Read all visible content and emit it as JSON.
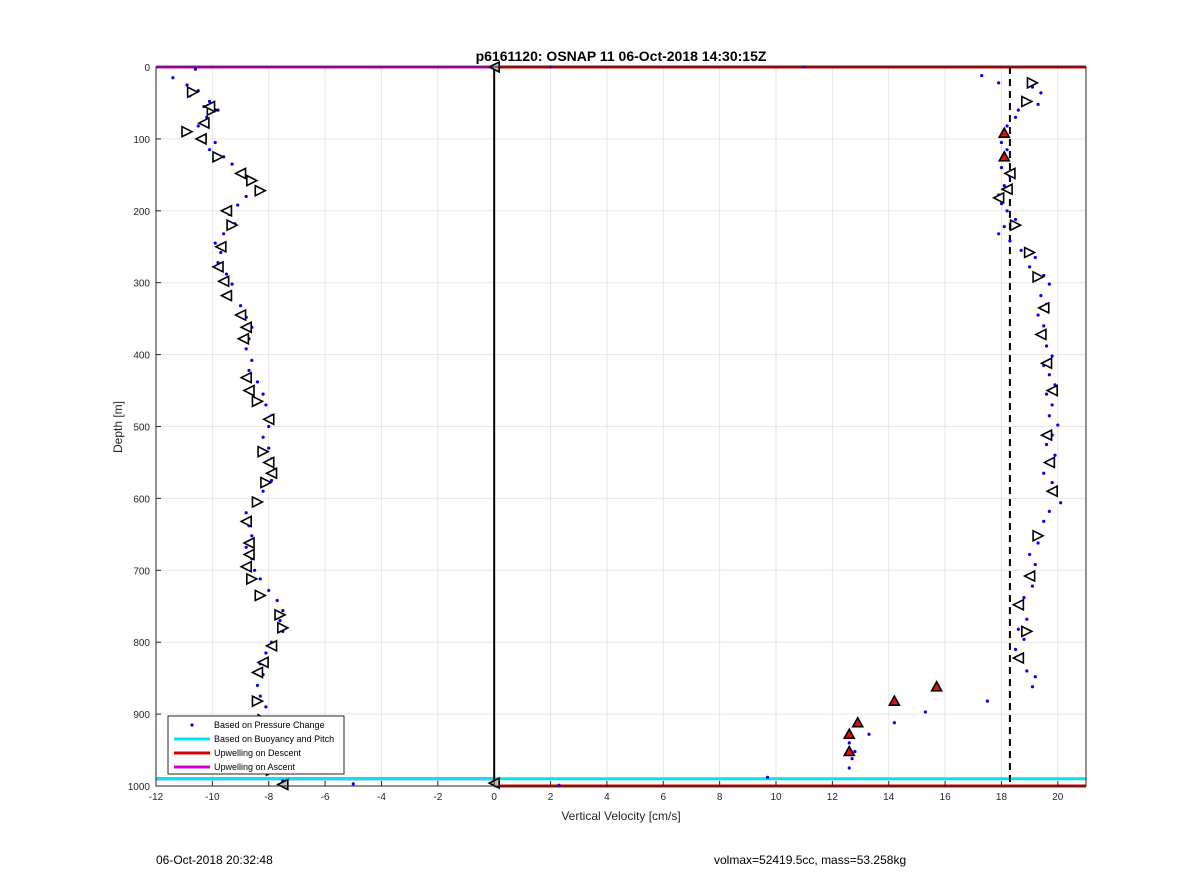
{
  "footer": {
    "timestamp": "06-Oct-2018 20:32:48",
    "vol_mass": "volmax=52419.5cc, mass=53.258kg"
  },
  "colors": {
    "pressure_points": "#0000ff",
    "buoyancy_line": "#00e5ee",
    "upwelling_descent": "#d00000",
    "upwelling_ascent": "#d000d0",
    "grid": "#e6e6e6",
    "marker_fill_red": "#e01010"
  },
  "chart_data": {
    "type": "scatter",
    "title": "p6161120: OSNAP 11 06-Oct-2018 14:30:15Z",
    "xlabel": "Vertical Velocity [cm/s]",
    "ylabel": "Depth [m]",
    "xlim": [
      -12,
      21
    ],
    "ylim": [
      0,
      1000
    ],
    "y_reversed": true,
    "grid": true,
    "xticks": [
      -12,
      -10,
      -8,
      -6,
      -4,
      -2,
      0,
      2,
      4,
      6,
      8,
      10,
      12,
      14,
      16,
      18,
      20
    ],
    "yticks": [
      0,
      100,
      200,
      300,
      400,
      500,
      600,
      700,
      800,
      900,
      1000
    ],
    "legend": {
      "placement": "bottom-left",
      "entries": [
        "Based on Pressure Change",
        "Based on Buoyancy and Pitch",
        "Upwelling on Descent",
        "Upwelling on Ascent"
      ]
    },
    "reference_lines": {
      "zero_velocity_x": 0,
      "dashed_x": 18.3,
      "descent_upwelling_depths": [
        0,
        1000
      ],
      "ascent_upwelling_depths": [
        0,
        990
      ],
      "buoyancy_depth": 990
    },
    "pressure_ascent": [
      [
        -10.6,
        3
      ],
      [
        -11.4,
        15
      ],
      [
        -10.9,
        25
      ],
      [
        -10.5,
        33
      ],
      [
        -10.8,
        40
      ],
      [
        -10.1,
        48
      ],
      [
        -10.3,
        55
      ],
      [
        -9.8,
        60
      ],
      [
        -10.2,
        70
      ],
      [
        -10.5,
        82
      ],
      [
        -10.9,
        90
      ],
      [
        -10.3,
        97
      ],
      [
        -9.9,
        105
      ],
      [
        -10.1,
        115
      ],
      [
        -9.6,
        125
      ],
      [
        -9.3,
        135
      ],
      [
        -8.9,
        145
      ],
      [
        -8.6,
        158
      ],
      [
        -8.3,
        170
      ],
      [
        -8.8,
        180
      ],
      [
        -9.1,
        192
      ],
      [
        -9.4,
        205
      ],
      [
        -9.2,
        218
      ],
      [
        -9.6,
        232
      ],
      [
        -9.9,
        245
      ],
      [
        -9.7,
        258
      ],
      [
        -9.8,
        272
      ],
      [
        -9.5,
        288
      ],
      [
        -9.3,
        302
      ],
      [
        -9.4,
        318
      ],
      [
        -9.0,
        332
      ],
      [
        -8.8,
        348
      ],
      [
        -8.6,
        362
      ],
      [
        -8.7,
        378
      ],
      [
        -8.8,
        392
      ],
      [
        -8.6,
        408
      ],
      [
        -8.7,
        422
      ],
      [
        -8.4,
        438
      ],
      [
        -8.2,
        455
      ],
      [
        -8.1,
        470
      ],
      [
        -7.9,
        485
      ],
      [
        -8.0,
        500
      ],
      [
        -8.2,
        515
      ],
      [
        -8.0,
        530
      ],
      [
        -7.9,
        545
      ],
      [
        -7.8,
        560
      ],
      [
        -7.9,
        575
      ],
      [
        -8.2,
        590
      ],
      [
        -8.5,
        605
      ],
      [
        -8.8,
        620
      ],
      [
        -8.7,
        638
      ],
      [
        -8.6,
        652
      ],
      [
        -8.8,
        668
      ],
      [
        -8.6,
        684
      ],
      [
        -8.5,
        700
      ],
      [
        -8.3,
        712
      ],
      [
        -8.0,
        728
      ],
      [
        -7.7,
        742
      ],
      [
        -7.5,
        756
      ],
      [
        -7.6,
        770
      ],
      [
        -7.5,
        785
      ],
      [
        -7.9,
        800
      ],
      [
        -8.1,
        815
      ],
      [
        -8.3,
        830
      ],
      [
        -8.2,
        845
      ],
      [
        -8.4,
        860
      ],
      [
        -8.3,
        875
      ],
      [
        -8.1,
        890
      ],
      [
        -8.3,
        905
      ],
      [
        -8.0,
        918
      ],
      [
        -7.9,
        932
      ],
      [
        -7.8,
        945
      ],
      [
        -7.9,
        958
      ],
      [
        -7.7,
        970
      ],
      [
        -7.6,
        982
      ],
      [
        -7.5,
        993
      ],
      [
        -5.0,
        997
      ],
      [
        2.0,
        0
      ],
      [
        11.0,
        0
      ]
    ],
    "pressure_descent": [
      [
        17.3,
        12
      ],
      [
        17.9,
        22
      ],
      [
        19.1,
        28
      ],
      [
        19.4,
        36
      ],
      [
        18.8,
        44
      ],
      [
        19.3,
        52
      ],
      [
        18.6,
        60
      ],
      [
        18.5,
        70
      ],
      [
        18.2,
        82
      ],
      [
        18.1,
        93
      ],
      [
        18.0,
        105
      ],
      [
        18.2,
        115
      ],
      [
        18.1,
        128
      ],
      [
        18.0,
        140
      ],
      [
        18.3,
        152
      ],
      [
        18.1,
        165
      ],
      [
        17.9,
        178
      ],
      [
        18.0,
        190
      ],
      [
        18.2,
        200
      ],
      [
        18.5,
        212
      ],
      [
        18.1,
        222
      ],
      [
        17.9,
        232
      ],
      [
        18.3,
        242
      ],
      [
        18.7,
        255
      ],
      [
        19.2,
        265
      ],
      [
        19.0,
        278
      ],
      [
        19.5,
        290
      ],
      [
        19.7,
        302
      ],
      [
        19.4,
        318
      ],
      [
        19.6,
        330
      ],
      [
        19.3,
        345
      ],
      [
        19.5,
        360
      ],
      [
        19.4,
        372
      ],
      [
        19.6,
        388
      ],
      [
        19.8,
        402
      ],
      [
        19.5,
        415
      ],
      [
        19.7,
        428
      ],
      [
        19.9,
        442
      ],
      [
        19.6,
        455
      ],
      [
        19.8,
        470
      ],
      [
        19.7,
        485
      ],
      [
        20.0,
        498
      ],
      [
        19.8,
        512
      ],
      [
        19.6,
        525
      ],
      [
        19.9,
        540
      ],
      [
        19.7,
        552
      ],
      [
        19.5,
        565
      ],
      [
        19.8,
        578
      ],
      [
        19.9,
        592
      ],
      [
        20.1,
        606
      ],
      [
        19.7,
        618
      ],
      [
        19.5,
        632
      ],
      [
        19.2,
        648
      ],
      [
        19.3,
        662
      ],
      [
        19.0,
        678
      ],
      [
        19.2,
        692
      ],
      [
        19.0,
        708
      ],
      [
        19.1,
        722
      ],
      [
        18.8,
        738
      ],
      [
        18.7,
        752
      ],
      [
        18.9,
        768
      ],
      [
        18.6,
        782
      ],
      [
        18.8,
        796
      ],
      [
        18.5,
        810
      ],
      [
        18.7,
        825
      ],
      [
        18.9,
        840
      ],
      [
        19.2,
        848
      ],
      [
        19.1,
        862
      ],
      [
        17.5,
        882
      ],
      [
        15.3,
        897
      ],
      [
        14.2,
        912
      ],
      [
        13.3,
        928
      ],
      [
        12.6,
        940
      ],
      [
        12.8,
        952
      ],
      [
        12.7,
        962
      ],
      [
        12.6,
        975
      ],
      [
        9.7,
        988
      ],
      [
        2.3,
        999
      ]
    ],
    "markers_ascent_right": [
      [
        -10.7,
        35
      ],
      [
        -10.0,
        60
      ],
      [
        -10.9,
        90
      ],
      [
        -9.8,
        125
      ],
      [
        -8.6,
        158
      ],
      [
        -8.3,
        172
      ],
      [
        -9.3,
        220
      ],
      [
        -8.4,
        465
      ],
      [
        -8.2,
        535
      ],
      [
        -8.1,
        578
      ],
      [
        -8.4,
        605
      ],
      [
        -8.6,
        712
      ],
      [
        -8.3,
        735
      ],
      [
        -7.6,
        762
      ],
      [
        -7.5,
        780
      ],
      [
        -8.4,
        882
      ],
      [
        -8.2,
        908
      ],
      [
        -8.0,
        928
      ],
      [
        -7.9,
        978
      ]
    ],
    "markers_ascent_left": [
      [
        -10.1,
        55
      ],
      [
        -10.3,
        78
      ],
      [
        -10.4,
        100
      ],
      [
        -9.0,
        148
      ],
      [
        -9.5,
        200
      ],
      [
        -9.7,
        250
      ],
      [
        -9.8,
        278
      ],
      [
        -9.6,
        298
      ],
      [
        -9.5,
        318
      ],
      [
        -9.0,
        345
      ],
      [
        -8.8,
        362
      ],
      [
        -8.9,
        378
      ],
      [
        -8.8,
        432
      ],
      [
        -8.7,
        450
      ],
      [
        -8.0,
        490
      ],
      [
        -8.0,
        550
      ],
      [
        -7.9,
        565
      ],
      [
        -8.8,
        632
      ],
      [
        -8.7,
        662
      ],
      [
        -8.7,
        678
      ],
      [
        -8.8,
        695
      ],
      [
        -7.9,
        805
      ],
      [
        -8.2,
        828
      ],
      [
        -8.4,
        842
      ],
      [
        -8.0,
        945
      ]
    ],
    "markers_descent_right": [
      [
        19.1,
        22
      ],
      [
        18.9,
        48
      ],
      [
        18.5,
        220
      ],
      [
        19.0,
        258
      ],
      [
        19.3,
        292
      ],
      [
        19.3,
        652
      ],
      [
        18.9,
        785
      ]
    ],
    "markers_descent_left": [
      [
        18.3,
        148
      ],
      [
        18.2,
        170
      ],
      [
        17.9,
        182
      ],
      [
        19.5,
        335
      ],
      [
        19.4,
        372
      ],
      [
        19.6,
        412
      ],
      [
        19.8,
        450
      ],
      [
        19.6,
        512
      ],
      [
        19.7,
        550
      ],
      [
        19.8,
        590
      ],
      [
        19.0,
        708
      ],
      [
        18.6,
        748
      ],
      [
        18.6,
        822
      ]
    ],
    "markers_red_up": [
      [
        18.1,
        92
      ],
      [
        18.1,
        125
      ],
      [
        15.7,
        862
      ],
      [
        14.2,
        882
      ],
      [
        12.9,
        912
      ],
      [
        12.6,
        928
      ],
      [
        12.6,
        952
      ]
    ],
    "markers_zero": [
      [
        0,
        0
      ],
      [
        0,
        996
      ],
      [
        -7.5,
        998
      ]
    ]
  }
}
